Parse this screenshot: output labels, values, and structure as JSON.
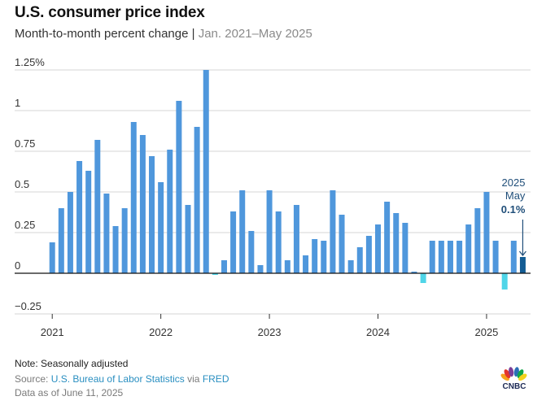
{
  "header": {
    "title": "U.S. consumer price index",
    "subtitle_main": "Month-to-month percent change | ",
    "subtitle_range": "Jan. 2021–May 2025"
  },
  "chart_data": {
    "type": "bar",
    "title": "U.S. consumer price index",
    "subtitle": "Month-to-month percent change | Jan. 2021–May 2025",
    "xlabel": "",
    "ylabel": "",
    "ylim": [
      -0.25,
      1.25
    ],
    "yticks": [
      {
        "value": 1.25,
        "label": "1.25%"
      },
      {
        "value": 1,
        "label": "1"
      },
      {
        "value": 0.75,
        "label": "0.75"
      },
      {
        "value": 0.5,
        "label": "0.5"
      },
      {
        "value": 0.25,
        "label": "0.25"
      },
      {
        "value": 0,
        "label": "0"
      },
      {
        "value": -0.25,
        "label": "-0.25"
      }
    ],
    "xticks": [
      {
        "month_index": 0,
        "label": "2021"
      },
      {
        "month_index": 12,
        "label": "2022"
      },
      {
        "month_index": 24,
        "label": "2023"
      },
      {
        "month_index": 36,
        "label": "2024"
      },
      {
        "month_index": 48,
        "label": "2025"
      }
    ],
    "grid": true,
    "categories": [
      "2021-01",
      "2021-02",
      "2021-03",
      "2021-04",
      "2021-05",
      "2021-06",
      "2021-07",
      "2021-08",
      "2021-09",
      "2021-10",
      "2021-11",
      "2021-12",
      "2022-01",
      "2022-02",
      "2022-03",
      "2022-04",
      "2022-05",
      "2022-06",
      "2022-07",
      "2022-08",
      "2022-09",
      "2022-10",
      "2022-11",
      "2022-12",
      "2023-01",
      "2023-02",
      "2023-03",
      "2023-04",
      "2023-05",
      "2023-06",
      "2023-07",
      "2023-08",
      "2023-09",
      "2023-10",
      "2023-11",
      "2023-12",
      "2024-01",
      "2024-02",
      "2024-03",
      "2024-04",
      "2024-05",
      "2024-06",
      "2024-07",
      "2024-08",
      "2024-09",
      "2024-10",
      "2024-11",
      "2024-12",
      "2025-01",
      "2025-02",
      "2025-03",
      "2025-04",
      "2025-05"
    ],
    "values": [
      0.19,
      0.4,
      0.5,
      0.69,
      0.63,
      0.82,
      0.49,
      0.29,
      0.4,
      0.93,
      0.85,
      0.72,
      0.56,
      0.76,
      1.06,
      0.42,
      0.9,
      1.25,
      -0.01,
      0.08,
      0.38,
      0.51,
      0.26,
      0.05,
      0.51,
      0.38,
      0.08,
      0.42,
      0.11,
      0.21,
      0.2,
      0.51,
      0.36,
      0.08,
      0.16,
      0.23,
      0.3,
      0.44,
      0.37,
      0.31,
      0.01,
      -0.06,
      0.2,
      0.2,
      0.2,
      0.2,
      0.3,
      0.4,
      0.5,
      0.2,
      -0.1,
      0.2,
      0.1
    ],
    "highlight_index": 52,
    "colors": {
      "positive": "#4f97dc",
      "negative": "#4fd5e8",
      "highlight": "#135c94",
      "gridline": "#d4d4d4",
      "zero_line": "#111111"
    },
    "annotation": {
      "line1": "2025",
      "line2": "May",
      "value": "0.1%"
    }
  },
  "footer": {
    "note": "Note: Seasonally adjusted",
    "source_prefix": "Source: ",
    "source_link1": "U.S. Bureau of Labor Statistics",
    "source_via": " via ",
    "source_link2": "FRED",
    "as_of": "Data as of June 11, 2025"
  },
  "logo": {
    "text": "CNBC"
  }
}
